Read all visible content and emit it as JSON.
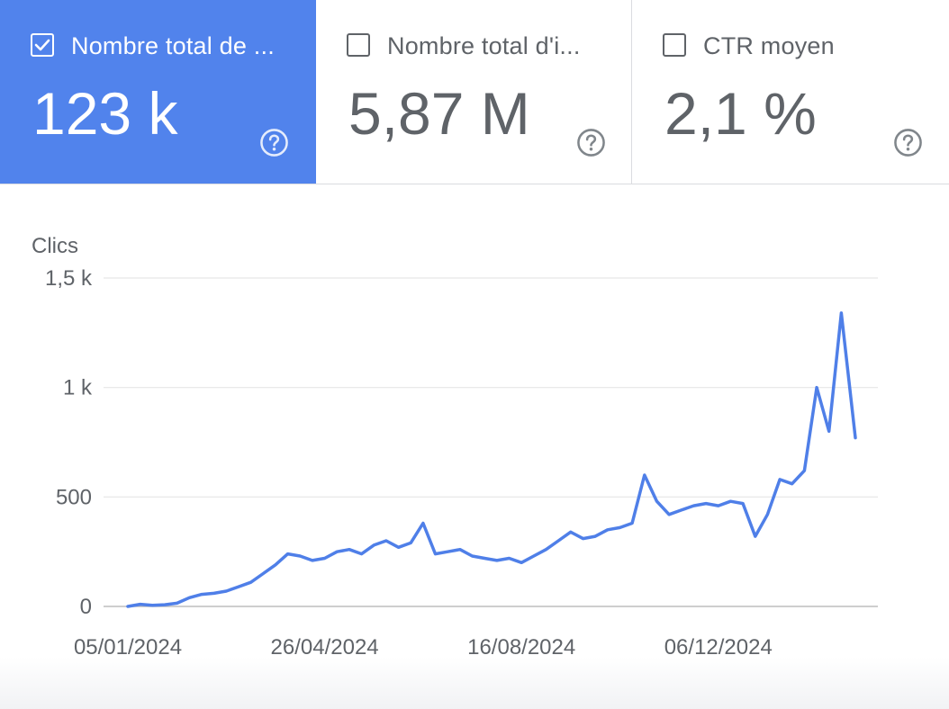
{
  "metrics": [
    {
      "label": "Nombre total de ...",
      "value": "123 k",
      "checked": true
    },
    {
      "label": "Nombre total d'i...",
      "value": "5,87 M",
      "checked": false
    },
    {
      "label": "CTR moyen",
      "value": "2,1 %",
      "checked": false
    }
  ],
  "icons": {
    "checkbox_checked": "checkbox-checked-icon",
    "checkbox_empty": "checkbox-empty-icon",
    "help": "help-circle-icon"
  },
  "colors": {
    "selected_metric_bg": "#5183ec",
    "line": "#4f7fe8",
    "grid": "#e6e6e6",
    "text": "#5f6368"
  },
  "chart_data": {
    "type": "line",
    "ylabel": "Clics",
    "ylim": [
      0,
      1500
    ],
    "y_ticks": [
      0,
      500,
      1000,
      1500
    ],
    "y_tick_labels": [
      "0",
      "500",
      "1 k",
      "1,5 k"
    ],
    "x_ticks": [
      "05/01/2024",
      "26/04/2024",
      "16/08/2024",
      "06/12/2024"
    ],
    "x_range": [
      "2024-01-05",
      "2025-02-22"
    ],
    "grid": true,
    "series": [
      {
        "points": [
          [
            "2024-01-05",
            0
          ],
          [
            "2024-01-12",
            10
          ],
          [
            "2024-01-19",
            5
          ],
          [
            "2024-01-26",
            8
          ],
          [
            "2024-02-02",
            15
          ],
          [
            "2024-02-09",
            40
          ],
          [
            "2024-02-16",
            55
          ],
          [
            "2024-02-23",
            60
          ],
          [
            "2024-03-01",
            70
          ],
          [
            "2024-03-08",
            90
          ],
          [
            "2024-03-15",
            110
          ],
          [
            "2024-03-22",
            150
          ],
          [
            "2024-03-29",
            190
          ],
          [
            "2024-04-05",
            240
          ],
          [
            "2024-04-12",
            230
          ],
          [
            "2024-04-19",
            210
          ],
          [
            "2024-04-26",
            220
          ],
          [
            "2024-05-03",
            250
          ],
          [
            "2024-05-10",
            260
          ],
          [
            "2024-05-17",
            240
          ],
          [
            "2024-05-24",
            280
          ],
          [
            "2024-05-31",
            300
          ],
          [
            "2024-06-07",
            270
          ],
          [
            "2024-06-14",
            290
          ],
          [
            "2024-06-21",
            380
          ],
          [
            "2024-06-28",
            240
          ],
          [
            "2024-07-05",
            250
          ],
          [
            "2024-07-12",
            260
          ],
          [
            "2024-07-19",
            230
          ],
          [
            "2024-07-26",
            220
          ],
          [
            "2024-08-02",
            210
          ],
          [
            "2024-08-09",
            220
          ],
          [
            "2024-08-16",
            200
          ],
          [
            "2024-08-23",
            230
          ],
          [
            "2024-08-30",
            260
          ],
          [
            "2024-09-06",
            300
          ],
          [
            "2024-09-13",
            340
          ],
          [
            "2024-09-20",
            310
          ],
          [
            "2024-09-27",
            320
          ],
          [
            "2024-10-04",
            350
          ],
          [
            "2024-10-11",
            360
          ],
          [
            "2024-10-18",
            380
          ],
          [
            "2024-10-25",
            600
          ],
          [
            "2024-11-01",
            480
          ],
          [
            "2024-11-08",
            420
          ],
          [
            "2024-11-15",
            440
          ],
          [
            "2024-11-22",
            460
          ],
          [
            "2024-11-29",
            470
          ],
          [
            "2024-12-06",
            460
          ],
          [
            "2024-12-13",
            480
          ],
          [
            "2024-12-20",
            470
          ],
          [
            "2024-12-27",
            320
          ],
          [
            "2025-01-03",
            420
          ],
          [
            "2025-01-10",
            580
          ],
          [
            "2025-01-17",
            560
          ],
          [
            "2025-01-24",
            620
          ],
          [
            "2025-01-31",
            1000
          ],
          [
            "2025-02-07",
            800
          ],
          [
            "2025-02-14",
            1340
          ],
          [
            "2025-02-22",
            770
          ]
        ]
      }
    ]
  }
}
